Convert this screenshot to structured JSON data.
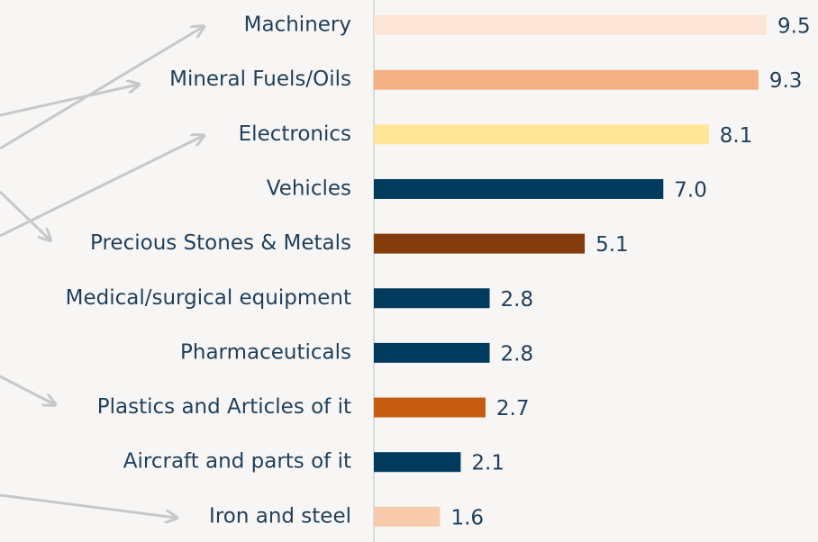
{
  "chart_data": {
    "type": "bar",
    "orientation": "horizontal",
    "categories": [
      "Machinery",
      "Mineral Fuels/Oils",
      "Electronics",
      "Vehicles",
      "Precious Stones & Metals",
      "Medical/surgical equipment",
      "Pharmaceuticals",
      "Plastics and Articles of it",
      "Aircraft and parts of it",
      "Iron and steel"
    ],
    "values": [
      9.5,
      9.3,
      8.1,
      7.0,
      5.1,
      2.8,
      2.8,
      2.7,
      2.1,
      1.6
    ],
    "value_labels": [
      "9.5",
      "9.3",
      "8.1",
      "7.0",
      "5.1",
      "2.8",
      "2.8",
      "2.7",
      "2.1",
      "1.6"
    ],
    "colors": [
      "#fce4d6",
      "#f4b183",
      "#ffe699",
      "#003a5c",
      "#843c0c",
      "#003a5c",
      "#003a5c",
      "#c55a11",
      "#003a5c",
      "#f8cbad"
    ]
  }
}
